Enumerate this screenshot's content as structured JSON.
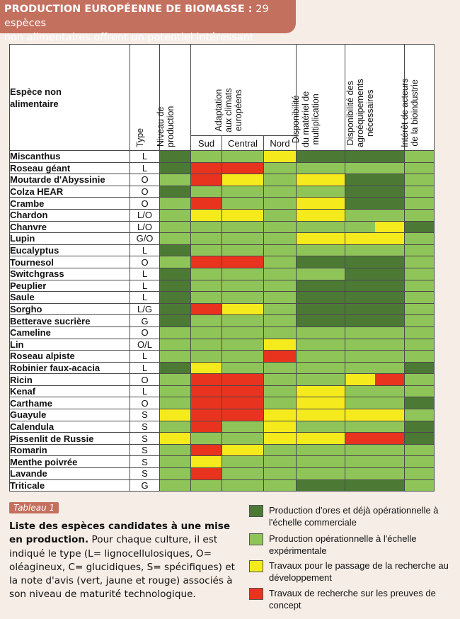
{
  "header": {
    "title_bold": "PRODUCTION EUROPÉENNE DE BIOMASSE :",
    "title_rest": " 29 espèces",
    "line2": "non alimentaires offrent un potentiel intéressant"
  },
  "table": {
    "col_species": "Espèce non\nalimentaire",
    "col_type": "Type",
    "col_level": "Niveau de\nproduction",
    "col_adapt": "Adaptation\naux climats\neuropéens",
    "col_sud": "Sud",
    "col_central": "Central",
    "col_nord": "Nord",
    "col_material": "Disponibilité\ndu matériel de\nmultiplication",
    "col_agro": "Disponibilité des\nagroéquipements\nnécessaires",
    "col_interest": "Intérêt de acteurs\nde la bioindustrie",
    "colors": {
      "D": "#4c7a35",
      "G": "#8fc459",
      "Y": "#f5ea1b",
      "R": "#e8331e"
    },
    "rows": [
      {
        "name": "Miscanthus",
        "type": "L",
        "levels": [
          "D",
          "G",
          "G",
          "Y",
          "D",
          "D",
          "G"
        ]
      },
      {
        "name": "Roseau géant",
        "type": "L",
        "levels": [
          "D",
          "R",
          "R",
          "G",
          "G",
          "G",
          "G"
        ]
      },
      {
        "name": "Moutarde d'Abyssinie",
        "type": "O",
        "levels": [
          "G",
          "R",
          "Y",
          "G",
          "Y",
          "D",
          "G"
        ]
      },
      {
        "name": "Colza HEAR",
        "type": "O",
        "levels": [
          "D",
          "G",
          "G",
          "G",
          "G",
          "D",
          "G"
        ]
      },
      {
        "name": "Crambe",
        "type": "O",
        "levels": [
          "G",
          "R",
          "G",
          "G",
          "Y",
          "D",
          "G"
        ]
      },
      {
        "name": "Chardon",
        "type": "L/O",
        "levels": [
          "G",
          "Y",
          "Y",
          "G",
          "Y",
          "G",
          "G"
        ]
      },
      {
        "name": "Chanvre",
        "type": "L/O",
        "levels": [
          "G",
          "G",
          "G",
          "G",
          "G",
          "GY",
          "D"
        ]
      },
      {
        "name": "Lupin",
        "type": "G/O",
        "levels": [
          "G",
          "G",
          "G",
          "G",
          "Y",
          "Y",
          "G"
        ]
      },
      {
        "name": "Eucalyptus",
        "type": "L",
        "levels": [
          "D",
          "G",
          "G",
          "G",
          "G",
          "G",
          "G"
        ]
      },
      {
        "name": "Tournesol",
        "type": "O",
        "levels": [
          "G",
          "R",
          "R",
          "G",
          "D",
          "D",
          "G"
        ]
      },
      {
        "name": "Switchgrass",
        "type": "L",
        "levels": [
          "D",
          "G",
          "G",
          "G",
          "G",
          "D",
          "G"
        ]
      },
      {
        "name": "Peuplier",
        "type": "L",
        "levels": [
          "D",
          "G",
          "G",
          "G",
          "D",
          "D",
          "G"
        ]
      },
      {
        "name": "Saule",
        "type": "L",
        "levels": [
          "D",
          "G",
          "G",
          "G",
          "D",
          "D",
          "G"
        ]
      },
      {
        "name": "Sorgho",
        "type": "L/G",
        "levels": [
          "D",
          "R",
          "Y",
          "G",
          "D",
          "D",
          "G"
        ]
      },
      {
        "name": "Betterave sucrière",
        "type": "G",
        "levels": [
          "D",
          "G",
          "G",
          "G",
          "D",
          "D",
          "G"
        ]
      },
      {
        "name": "Cameline",
        "type": "O",
        "levels": [
          "G",
          "G",
          "G",
          "G",
          "G",
          "G",
          "G"
        ]
      },
      {
        "name": "Lin",
        "type": "O/L",
        "levels": [
          "G",
          "G",
          "G",
          "Y",
          "G",
          "G",
          "G"
        ]
      },
      {
        "name": "Roseau alpiste",
        "type": "L",
        "levels": [
          "G",
          "G",
          "G",
          "R",
          "G",
          "G",
          "G"
        ]
      },
      {
        "name": "Robinier faux-acacia",
        "type": "L",
        "levels": [
          "D",
          "Y",
          "G",
          "G",
          "G",
          "G",
          "D"
        ]
      },
      {
        "name": "Ricin",
        "type": "O",
        "levels": [
          "G",
          "R",
          "R",
          "G",
          "G",
          "YR",
          "G"
        ]
      },
      {
        "name": "Kenaf",
        "type": "L",
        "levels": [
          "G",
          "R",
          "R",
          "G",
          "Y",
          "G",
          "G"
        ]
      },
      {
        "name": "Carthame",
        "type": "O",
        "levels": [
          "G",
          "R",
          "R",
          "G",
          "Y",
          "G",
          "D"
        ]
      },
      {
        "name": "Guayule",
        "type": "S",
        "levels": [
          "Y",
          "R",
          "R",
          "Y",
          "Y",
          "Y",
          "G"
        ]
      },
      {
        "name": "Calendula",
        "type": "S",
        "levels": [
          "G",
          "R",
          "G",
          "Y",
          "G",
          "G",
          "D"
        ]
      },
      {
        "name": "Pissenlit de Russie",
        "type": "S",
        "levels": [
          "Y",
          "G",
          "G",
          "Y",
          "Y",
          "R",
          "D"
        ]
      },
      {
        "name": "Romarin",
        "type": "S",
        "levels": [
          "G",
          "R",
          "Y",
          "G",
          "G",
          "G",
          "G"
        ]
      },
      {
        "name": "Menthe poivrée",
        "type": "S",
        "levels": [
          "G",
          "Y",
          "G",
          "G",
          "G",
          "G",
          "G"
        ]
      },
      {
        "name": "Lavande",
        "type": "S",
        "levels": [
          "G",
          "R",
          "G",
          "G",
          "G",
          "G",
          "G"
        ]
      },
      {
        "name": "Triticale",
        "type": "G",
        "levels": [
          "G",
          "G",
          "G",
          "G",
          "D",
          "D",
          "G"
        ]
      }
    ]
  },
  "caption": {
    "tag": "Tableau 1",
    "bold": "Liste des espèces candidates à une mise en production.",
    "text": " Pour chaque culture, il est indiqué le type (L= lignocellulosiques, O= oléagineux, C= glucidiques, S= spécifiques) et la note d'avis (vert, jaune et rouge) associés à son niveau de maturité technologique."
  },
  "legend": [
    {
      "color": "#4c7a35",
      "text": "Production d'ores et déjà opérationnelle à l'échelle commerciale"
    },
    {
      "color": "#8fc459",
      "text": "Production opérationnelle à l'échelle expérimentale"
    },
    {
      "color": "#f5ea1b",
      "text": "Travaux pour le passage de la recherche au développement"
    },
    {
      "color": "#e8331e",
      "text": "Travaux de recherche sur les preuves de concept"
    }
  ]
}
